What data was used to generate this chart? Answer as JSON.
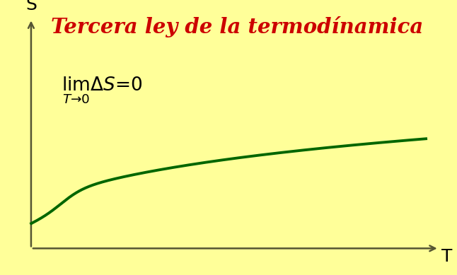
{
  "background_color": "#FFFF99",
  "title": "Tercera ley de la termodínamica",
  "title_color": "#CC0000",
  "title_fontsize": 21,
  "axis_label_S": "S",
  "axis_label_T": "T",
  "axis_label_fontsize": 18,
  "formula": "$\\lim_{T\\to0} \\Delta S = 0$",
  "formula_fontsize": 19,
  "curve_color": "#006600",
  "curve_linewidth": 2.8,
  "arrow_color": "#555533",
  "arrow_linewidth": 1.8
}
